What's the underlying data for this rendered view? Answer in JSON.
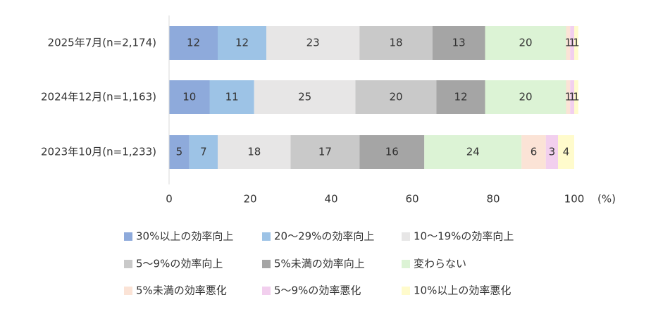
{
  "chart_data": {
    "type": "stacked-barh",
    "categories": [
      "2025年7月(n=2,174)",
      "2024年12月(n=1,163)",
      "2023年10月(n=1,233)"
    ],
    "xlabel": "(%)",
    "xlim": [
      0,
      100
    ],
    "xticks": [
      0,
      20,
      40,
      60,
      80,
      100
    ],
    "series": [
      {
        "name": "30%以上の効率向上",
        "color": "#8eaadb",
        "values": [
          12,
          10,
          5
        ]
      },
      {
        "name": "20～29%の効率向上",
        "color": "#9dc3e6",
        "values": [
          12,
          11,
          7
        ]
      },
      {
        "name": "10～19%の効率向上",
        "color": "#e7e6e6",
        "values": [
          23,
          25,
          18
        ]
      },
      {
        "name": "5～9%の効率向上",
        "color": "#c9c9c9",
        "values": [
          18,
          20,
          17
        ]
      },
      {
        "name": "5%未満の効率向上",
        "color": "#a5a5a5",
        "values": [
          13,
          12,
          16
        ]
      },
      {
        "name": "変わらない",
        "color": "#dcf3d5",
        "values": [
          20,
          20,
          24
        ]
      },
      {
        "name": "5%未満の効率悪化",
        "color": "#fbe3d6",
        "values": [
          1,
          1,
          6
        ]
      },
      {
        "name": "5～9%の効率悪化",
        "color": "#f2cfee",
        "values": [
          1,
          1,
          3
        ]
      },
      {
        "name": "10%以上の効率悪化",
        "color": "#fffbcc",
        "values": [
          1,
          1,
          4
        ]
      }
    ]
  }
}
